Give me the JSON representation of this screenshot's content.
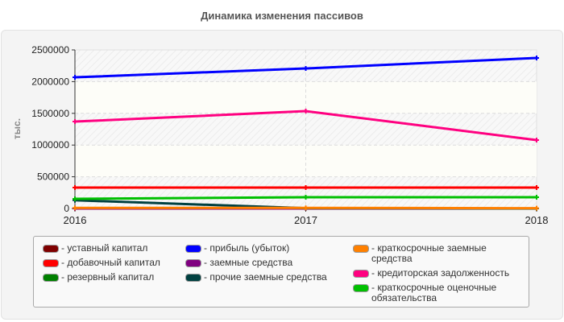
{
  "title": "Динамика изменения пассивов",
  "chart_data": {
    "type": "line",
    "title": "Динамика изменения пассивов",
    "xlabel": "",
    "ylabel": "тыс.",
    "categories": [
      "2016",
      "2017",
      "2018"
    ],
    "ylim": [
      0,
      2500000
    ],
    "yticks": [
      "0",
      "500000",
      "1000000",
      "1500000",
      "2000000",
      "2500000"
    ],
    "grid": true,
    "legend_position": "bottom",
    "series": [
      {
        "name": "уставный капитал",
        "color": "#7f0000",
        "values": [
          0,
          0,
          0
        ]
      },
      {
        "name": "добавочный капитал",
        "color": "#ff0000",
        "values": [
          330000,
          330000,
          330000
        ]
      },
      {
        "name": "резервный капитал",
        "color": "#008000",
        "values": [
          0,
          0,
          0
        ]
      },
      {
        "name": "прибыль (убыток)",
        "color": "#0000ff",
        "values": [
          2068000,
          2208000,
          2373000
        ]
      },
      {
        "name": "заемные средства",
        "color": "#800080",
        "values": [
          0,
          0,
          0
        ]
      },
      {
        "name": "прочие заемные средства",
        "color": "#004040",
        "values": [
          130000,
          5000,
          0
        ]
      },
      {
        "name": "краткосрочные заемные средства",
        "color": "#ff8000",
        "values": [
          10000,
          10000,
          5000
        ]
      },
      {
        "name": "кредиторская задолженность",
        "color": "#ff0080",
        "values": [
          1370000,
          1535000,
          1079000
        ]
      },
      {
        "name": "краткосрочные оценочные обязательства",
        "color": "#00c000",
        "values": [
          152000,
          178000,
          178000
        ]
      }
    ]
  },
  "legend": {
    "col1": [
      {
        "label": "- уставный капитал",
        "color": "#7f0000"
      },
      {
        "label": "- добавочный капитал",
        "color": "#ff0000"
      },
      {
        "label": "- резервный капитал",
        "color": "#008000"
      }
    ],
    "col2": [
      {
        "label": "- прибыль (убыток)",
        "color": "#0000ff"
      },
      {
        "label": "- заемные средства",
        "color": "#800080"
      },
      {
        "label": "- прочие заемные средства",
        "color": "#004040"
      }
    ],
    "col3": [
      {
        "label": "- краткосрочные заемные средства",
        "color": "#ff8000"
      },
      {
        "label": "- кредиторская задолженность",
        "color": "#ff0080"
      },
      {
        "label": "- краткосрочные оценочные обязательства",
        "color": "#00c000"
      }
    ]
  }
}
